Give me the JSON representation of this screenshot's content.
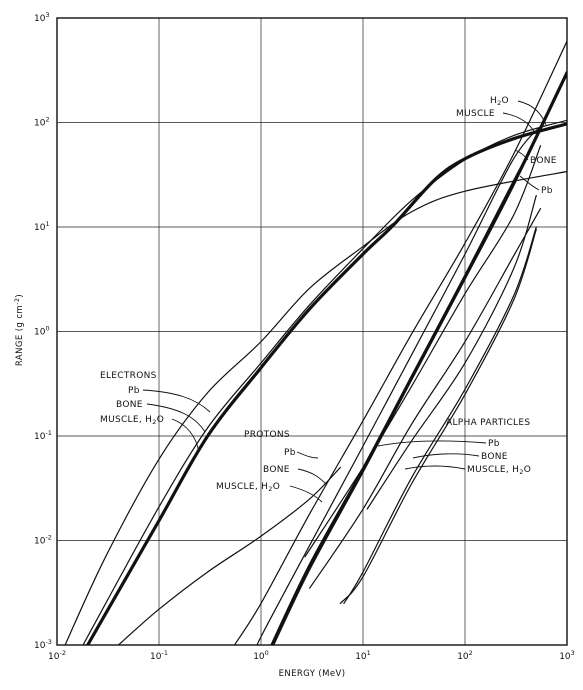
{
  "chart_data": {
    "type": "line",
    "title": "",
    "xlabel": "ENERGY (MeV)",
    "ylabel": "RANGE (g cm",
    "ylabel_exp": "-2",
    "ylabel_close": ")",
    "x_scale": "log",
    "y_scale": "log",
    "xlim": [
      0.01,
      1000
    ],
    "ylim": [
      0.001,
      1000
    ],
    "grid": true,
    "legend": "none",
    "x_ticks": [
      {
        "base": "10",
        "exp": "-2",
        "value": 0.01
      },
      {
        "base": "10",
        "exp": "-1",
        "value": 0.1
      },
      {
        "base": "10",
        "exp": "0",
        "value": 1
      },
      {
        "base": "10",
        "exp": "1",
        "value": 10
      },
      {
        "base": "10",
        "exp": "2",
        "value": 100
      },
      {
        "base": "10",
        "exp": "3",
        "value": 1000
      }
    ],
    "y_ticks": [
      {
        "base": "10",
        "exp": "-3",
        "value": 0.001
      },
      {
        "base": "10",
        "exp": "-2",
        "value": 0.01
      },
      {
        "base": "10",
        "exp": "-1",
        "value": 0.1
      },
      {
        "base": "10",
        "exp": "0",
        "value": 1
      },
      {
        "base": "10",
        "exp": "1",
        "value": 10
      },
      {
        "base": "10",
        "exp": "2",
        "value": 100
      },
      {
        "base": "10",
        "exp": "3",
        "value": 1000
      }
    ],
    "annotations": {
      "electrons": "ELECTRONS",
      "electrons_pb": "Pb",
      "electrons_bone": "BONE",
      "electrons_muscle": "MUSCLE, H",
      "protons": "PROTONS",
      "protons_pb": "Pb",
      "protons_bone": "BONE",
      "protons_muscle": "MUSCLE, H",
      "alpha": "ALPHA PARTICLES",
      "alpha_pb": "Pb",
      "alpha_bone": "BONE",
      "alpha_muscle": "MUSCLE, H",
      "high_h2o": "H",
      "high_muscle": "MUSCLE",
      "high_bone": "BONE",
      "high_pb": "Pb",
      "h2o_sub": "2",
      "h2o_o": "O"
    },
    "series": [
      {
        "id": "electrons-pb",
        "weight": 1.2,
        "points": [
          [
            0.012,
            0.001
          ],
          [
            0.03,
            0.007
          ],
          [
            0.1,
            0.06
          ],
          [
            0.3,
            0.26
          ],
          [
            1,
            0.8
          ],
          [
            3,
            2.6
          ],
          [
            10,
            6.5
          ],
          [
            30,
            14
          ],
          [
            100,
            22
          ],
          [
            1000,
            34
          ]
        ]
      },
      {
        "id": "electrons-bone",
        "weight": 1.2,
        "points": [
          [
            0.018,
            0.001
          ],
          [
            0.03,
            0.0025
          ],
          [
            0.1,
            0.021
          ],
          [
            0.3,
            0.12
          ],
          [
            1,
            0.5
          ],
          [
            3,
            1.8
          ],
          [
            10,
            6.2
          ],
          [
            30,
            18
          ],
          [
            100,
            44
          ],
          [
            300,
            75
          ],
          [
            1000,
            105
          ]
        ]
      },
      {
        "id": "electrons-muscle",
        "weight": 3.2,
        "points": [
          [
            0.02,
            0.001
          ],
          [
            0.03,
            0.002
          ],
          [
            0.1,
            0.0155
          ],
          [
            0.3,
            0.1
          ],
          [
            1,
            0.45
          ],
          [
            3,
            1.65
          ],
          [
            10,
            5.5
          ],
          [
            20,
            10.5
          ],
          [
            50,
            28
          ],
          [
            100,
            45
          ],
          [
            300,
            70
          ],
          [
            1000,
            97
          ]
        ]
      },
      {
        "id": "protons-pb",
        "weight": 1.2,
        "points": [
          [
            0.55,
            0.001
          ],
          [
            1,
            0.0025
          ],
          [
            3,
            0.018
          ],
          [
            10,
            0.14
          ],
          [
            30,
            0.95
          ],
          [
            100,
            7
          ],
          [
            300,
            50
          ],
          [
            1000,
            600
          ]
        ]
      },
      {
        "id": "protons-bone",
        "weight": 1.2,
        "points": [
          [
            0.95,
            0.001
          ],
          [
            1,
            0.0012
          ],
          [
            3,
            0.009
          ],
          [
            10,
            0.08
          ],
          [
            30,
            0.6
          ],
          [
            100,
            5.5
          ],
          [
            300,
            45
          ],
          [
            600,
            100
          ]
        ]
      },
      {
        "id": "protons-muscle",
        "weight": 1.2,
        "points": [
          [
            1.25,
            0.001
          ],
          [
            3,
            0.006
          ],
          [
            10,
            0.05
          ],
          [
            30,
            0.38
          ],
          [
            100,
            3.5
          ],
          [
            300,
            28
          ],
          [
            500,
            70
          ]
        ]
      },
      {
        "id": "protons-muscle-2",
        "weight": 3.2,
        "points": [
          [
            1.3,
            0.001
          ],
          [
            3,
            0.0055
          ],
          [
            10,
            0.047
          ],
          [
            30,
            0.36
          ],
          [
            100,
            3.3
          ],
          [
            300,
            26
          ],
          [
            1000,
            300
          ]
        ]
      },
      {
        "id": "alpha-pb",
        "weight": 1.2,
        "points": [
          [
            3,
            0.0035
          ],
          [
            10,
            0.02
          ],
          [
            30,
            0.13
          ],
          [
            100,
            0.8
          ],
          [
            300,
            5.3
          ],
          [
            550,
            15
          ]
        ]
      },
      {
        "id": "alpha-bone",
        "weight": 1.2,
        "points": [
          [
            6.5,
            0.0025
          ],
          [
            10,
            0.005
          ],
          [
            30,
            0.04
          ],
          [
            100,
            0.28
          ],
          [
            300,
            2.2
          ],
          [
            500,
            10
          ]
        ]
      },
      {
        "id": "alpha-muscle",
        "weight": 1.2,
        "points": [
          [
            6,
            0.0025
          ],
          [
            10,
            0.0045
          ],
          [
            30,
            0.035
          ],
          [
            100,
            0.25
          ],
          [
            300,
            2
          ],
          [
            500,
            9.5
          ]
        ]
      },
      {
        "id": "alpha-pb-2",
        "weight": 1.2,
        "points": [
          [
            11,
            0.02
          ],
          [
            30,
            0.09
          ],
          [
            100,
            0.5
          ],
          [
            300,
            4
          ],
          [
            500,
            20
          ]
        ]
      },
      {
        "id": "alpha-upper",
        "weight": 1.2,
        "points": [
          [
            2.7,
            0.007
          ],
          [
            10,
            0.05
          ],
          [
            30,
            0.3
          ],
          [
            100,
            2.3
          ],
          [
            300,
            13
          ],
          [
            550,
            60
          ]
        ]
      },
      {
        "id": "protons-muscle-low",
        "weight": 1.2,
        "points": [
          [
            0.04,
            0.001
          ],
          [
            0.1,
            0.0022
          ],
          [
            0.3,
            0.005
          ],
          [
            1,
            0.011
          ],
          [
            3,
            0.025
          ],
          [
            6,
            0.05
          ]
        ]
      }
    ]
  }
}
